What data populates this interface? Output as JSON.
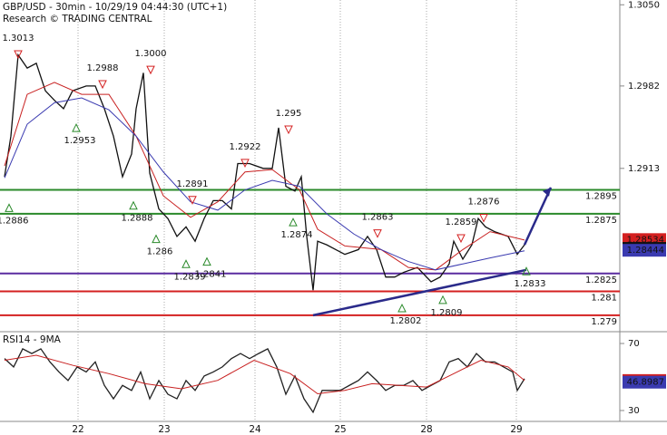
{
  "chart_data": [
    {
      "type": "line",
      "title": "GBP/USD - 30min - 10/29/19 04:44:30 (UTC+1)",
      "subtitle": "Research © TRADING CENTRAL",
      "xlim": [
        0,
        341.5
      ],
      "ylim": [
        1.2777,
        1.3054
      ],
      "yticks": [
        {
          "value": 1.305,
          "label": "1.3050"
        },
        1.2982,
        1.2913
      ],
      "xticks": [
        {
          "value": 43,
          "label": "22"
        },
        {
          "value": 90.5,
          "label": "23"
        },
        {
          "value": 140.5,
          "label": "24"
        },
        {
          "value": 187.5,
          "label": "25"
        },
        {
          "value": 235,
          "label": "28"
        },
        {
          "value": 284.5,
          "label": "29"
        }
      ],
      "grid": true,
      "series": [
        {
          "color": "#111111",
          "x": [
            2.5,
            6,
            10,
            15,
            20,
            25,
            30,
            35,
            40,
            47.5,
            52.5,
            57.5,
            62.5,
            67.5,
            72.5,
            75,
            79,
            82.5,
            87.5,
            92.5,
            97.5,
            102.5,
            107.5,
            112.5,
            117.5,
            122.5,
            127.5,
            131,
            137.5,
            145,
            150,
            153.5,
            157.5,
            162.5,
            166,
            169,
            172.5,
            175,
            180,
            185,
            190,
            197.5,
            202.5,
            207.5,
            212.5,
            217.5,
            222.5,
            230,
            237.5,
            242.5,
            247.5,
            250,
            255,
            260,
            263.5,
            267.5,
            272.5,
            280,
            285,
            289
          ],
          "values": [
            1.2906,
            1.294,
            1.3008,
            1.2997,
            1.3001,
            1.2978,
            1.297,
            1.2963,
            1.2978,
            1.2982,
            1.2982,
            1.2963,
            1.294,
            1.2906,
            1.2925,
            1.2963,
            1.2993,
            1.2909,
            1.2879,
            1.2871,
            1.2856,
            1.2864,
            1.2852,
            1.2871,
            1.2886,
            1.2886,
            1.2879,
            1.2917,
            1.2917,
            1.2913,
            1.2913,
            1.2947,
            1.2898,
            1.2894,
            1.2906,
            1.2856,
            1.2811,
            1.2852,
            1.2849,
            1.2845,
            1.2841,
            1.2845,
            1.2856,
            1.2845,
            1.2822,
            1.2822,
            1.2826,
            1.283,
            1.2818,
            1.2822,
            1.2833,
            1.2852,
            1.2837,
            1.2849,
            1.2871,
            1.2864,
            1.286,
            1.2856,
            1.2841,
            1.2849
          ]
        },
        {
          "color": "#c82020",
          "x": [
            2.5,
            15,
            30,
            45,
            60,
            75,
            90,
            105,
            120,
            135,
            150,
            165,
            175,
            190,
            210,
            225,
            240,
            255,
            270,
            289
          ],
          "values": [
            1.2915,
            1.2975,
            1.2985,
            1.2975,
            1.2975,
            1.294,
            1.289,
            1.2872,
            1.2885,
            1.291,
            1.2912,
            1.2895,
            1.2862,
            1.2848,
            1.2845,
            1.283,
            1.2828,
            1.2845,
            1.286,
            1.2853
          ]
        },
        {
          "color": "#3a3ab0",
          "x": [
            2.5,
            15,
            30,
            45,
            60,
            75,
            90,
            105,
            120,
            135,
            150,
            165,
            180,
            195,
            210,
            225,
            240,
            255,
            270,
            289
          ],
          "values": [
            1.2905,
            1.295,
            1.2968,
            1.2972,
            1.2962,
            1.294,
            1.291,
            1.2885,
            1.2878,
            1.2895,
            1.2903,
            1.2898,
            1.2875,
            1.2858,
            1.2845,
            1.2835,
            1.2828,
            1.2833,
            1.2838,
            1.2844
          ]
        }
      ],
      "levels": [
        {
          "value": 1.2895,
          "color": "#2a8a2a"
        },
        {
          "value": 1.2875,
          "color": "#2a8a2a"
        },
        {
          "value": 1.2825,
          "color": "#5a2ca0"
        },
        {
          "value": 1.281,
          "color": "#d42020"
        },
        {
          "value": 1.279,
          "color": "#d42020"
        }
      ],
      "annotations": [
        {
          "x": 10,
          "value": 1.3013,
          "kind": "high"
        },
        {
          "x": 56.5,
          "value": 1.2988,
          "kind": "high"
        },
        {
          "x": 83,
          "value": {
            "value": 1.3,
            "label": "1.3000"
          },
          "kind": "high"
        },
        {
          "x": 42,
          "value": 1.2953,
          "kind": "low"
        },
        {
          "x": 5,
          "value": 1.2886,
          "kind": "low"
        },
        {
          "x": 73.5,
          "value": 1.2888,
          "kind": "low"
        },
        {
          "x": 86,
          "value": 1.286,
          "kind": "low"
        },
        {
          "x": 102.5,
          "value": 1.2839,
          "kind": "low"
        },
        {
          "x": 114,
          "value": 1.2841,
          "kind": "low"
        },
        {
          "x": 106,
          "value": 1.2891,
          "kind": "high"
        },
        {
          "x": 135,
          "value": 1.2922,
          "kind": "high"
        },
        {
          "x": 159,
          "value": 1.295,
          "kind": "high"
        },
        {
          "x": 161.5,
          "value": 1.2874,
          "kind": "low"
        },
        {
          "x": 208,
          "value": 1.2863,
          "kind": "high"
        },
        {
          "x": 221.5,
          "value": 1.2802,
          "kind": "low"
        },
        {
          "x": 244,
          "value": 1.2809,
          "kind": "low"
        },
        {
          "x": 254,
          "value": 1.2859,
          "kind": "high"
        },
        {
          "x": 266.5,
          "value": 1.2876,
          "kind": "high"
        },
        {
          "x": 290,
          "value": 1.2833,
          "kind": "low"
        }
      ],
      "trendline": {
        "x": [
          172.5,
          290
        ],
        "values": [
          1.279,
          1.2828
        ],
        "color": "#2a2a8a"
      },
      "arrow": {
        "x": [
          289,
          303.5
        ],
        "values": [
          1.2849,
          1.2897
        ],
        "color": "#2a2a8a"
      },
      "price_tags": [
        {
          "value": 1.28534,
          "color": "#d42020"
        },
        {
          "value": 1.2846,
          "color": "#111111"
        },
        {
          "value": 1.28444,
          "color": "#3a3ab0"
        }
      ]
    },
    {
      "type": "line",
      "title": "RSI14 - 9MA",
      "xlim": [
        0,
        341.5
      ],
      "ylim": [
        23.5,
        76.5
      ],
      "yticks": [
        70,
        30
      ],
      "series": [
        {
          "color": "#222222",
          "x": [
            2.5,
            7.5,
            12.5,
            17.5,
            22.5,
            27.5,
            32.5,
            37.5,
            42.5,
            47.5,
            52.5,
            57.5,
            62.5,
            67.5,
            72.5,
            77.5,
            82.5,
            87.5,
            92.5,
            97.5,
            102.5,
            107.5,
            112.5,
            117.5,
            122.5,
            127.5,
            132.5,
            137.5,
            142.5,
            147.5,
            152.5,
            157.5,
            162.5,
            167.5,
            172.5,
            177.5,
            182.5,
            187.5,
            192.5,
            197.5,
            202.5,
            207.5,
            212.5,
            217.5,
            222.5,
            227.5,
            232.5,
            237.5,
            242.5,
            247.5,
            252.5,
            257.5,
            262.5,
            267.5,
            272.5,
            277.5,
            282.5,
            285,
            289
          ],
          "values": [
            61,
            56,
            66.8,
            64,
            66.8,
            59,
            53,
            47.9,
            56,
            53,
            59,
            45,
            37,
            45,
            42,
            53,
            37,
            47.9,
            39.7,
            37,
            47.9,
            42,
            50.6,
            53,
            56,
            61,
            64,
            61,
            64,
            66.8,
            56,
            39.7,
            50.6,
            37,
            29,
            42,
            42,
            42,
            45,
            47.9,
            53,
            47.9,
            42,
            45,
            45,
            47.9,
            42,
            45,
            47.9,
            59,
            61,
            56,
            64,
            59,
            59,
            56,
            53,
            42,
            49
          ]
        },
        {
          "color": "#c82020",
          "x": [
            2.5,
            20,
            40,
            60,
            80,
            100,
            120,
            140,
            160,
            175,
            190,
            205,
            220,
            235,
            250,
            265,
            280,
            289
          ],
          "values": [
            60,
            63,
            57,
            52,
            46,
            43,
            48,
            60,
            52,
            40,
            42,
            46,
            45,
            44,
            52,
            60,
            56,
            47.9043
          ]
        }
      ],
      "price_tags": [
        {
          "value": 47.9043,
          "color": "#d42020"
        },
        {
          "value": 46.8987,
          "color": "#3a3ab0"
        }
      ]
    }
  ]
}
